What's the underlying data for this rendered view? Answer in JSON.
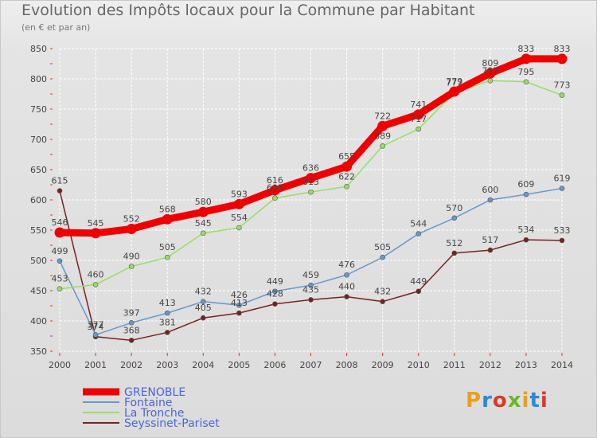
{
  "header": {
    "title": "Evolution des Impôts locaux pour la Commune par Habitant",
    "subtitle": "(en € et par an)"
  },
  "logo": {
    "text": "Proxiti",
    "colors": [
      "#e8a020",
      "#2a8ad8",
      "#d83a2a",
      "#6ab82a",
      "#e8a020",
      "#2a8ad8",
      "#d83a2a"
    ]
  },
  "chart_data": {
    "type": "line",
    "title": "Evolution des Impôts locaux pour la Commune par Habitant",
    "subtitle": "(en € et par an)",
    "x": [
      "2000",
      "2001",
      "2002",
      "2003",
      "2004",
      "2005",
      "2006",
      "2007",
      "2008",
      "2009",
      "2010",
      "2011",
      "2012",
      "2013",
      "2014"
    ],
    "ylim": [
      350,
      850
    ],
    "yticks": [
      "350",
      "400",
      "450",
      "500",
      "550",
      "600",
      "650",
      "700",
      "750",
      "800",
      "850"
    ],
    "grid": true,
    "legend_position": "bottom-left",
    "series": [
      {
        "name": "GRENOBLE",
        "color": "#ee0000",
        "values": [
          546,
          545,
          552,
          568,
          580,
          593,
          616,
          636,
          655,
          722,
          741,
          779,
          809,
          833,
          833
        ]
      },
      {
        "name": "Fontaine",
        "color": "#6699cc",
        "values": [
          499,
          377,
          397,
          413,
          432,
          426,
          449,
          459,
          476,
          505,
          544,
          570,
          600,
          609,
          619
        ]
      },
      {
        "name": "La Tronche",
        "color": "#99dd66",
        "values": [
          453,
          460,
          490,
          505,
          545,
          554,
          603,
          613,
          622,
          689,
          717,
          777,
          797,
          795,
          773
        ]
      },
      {
        "name": "Seyssinet-Pariset",
        "color": "#772222",
        "values": [
          615,
          374,
          368,
          381,
          405,
          413,
          428,
          435,
          440,
          432,
          449,
          512,
          517,
          534,
          533
        ]
      }
    ]
  }
}
